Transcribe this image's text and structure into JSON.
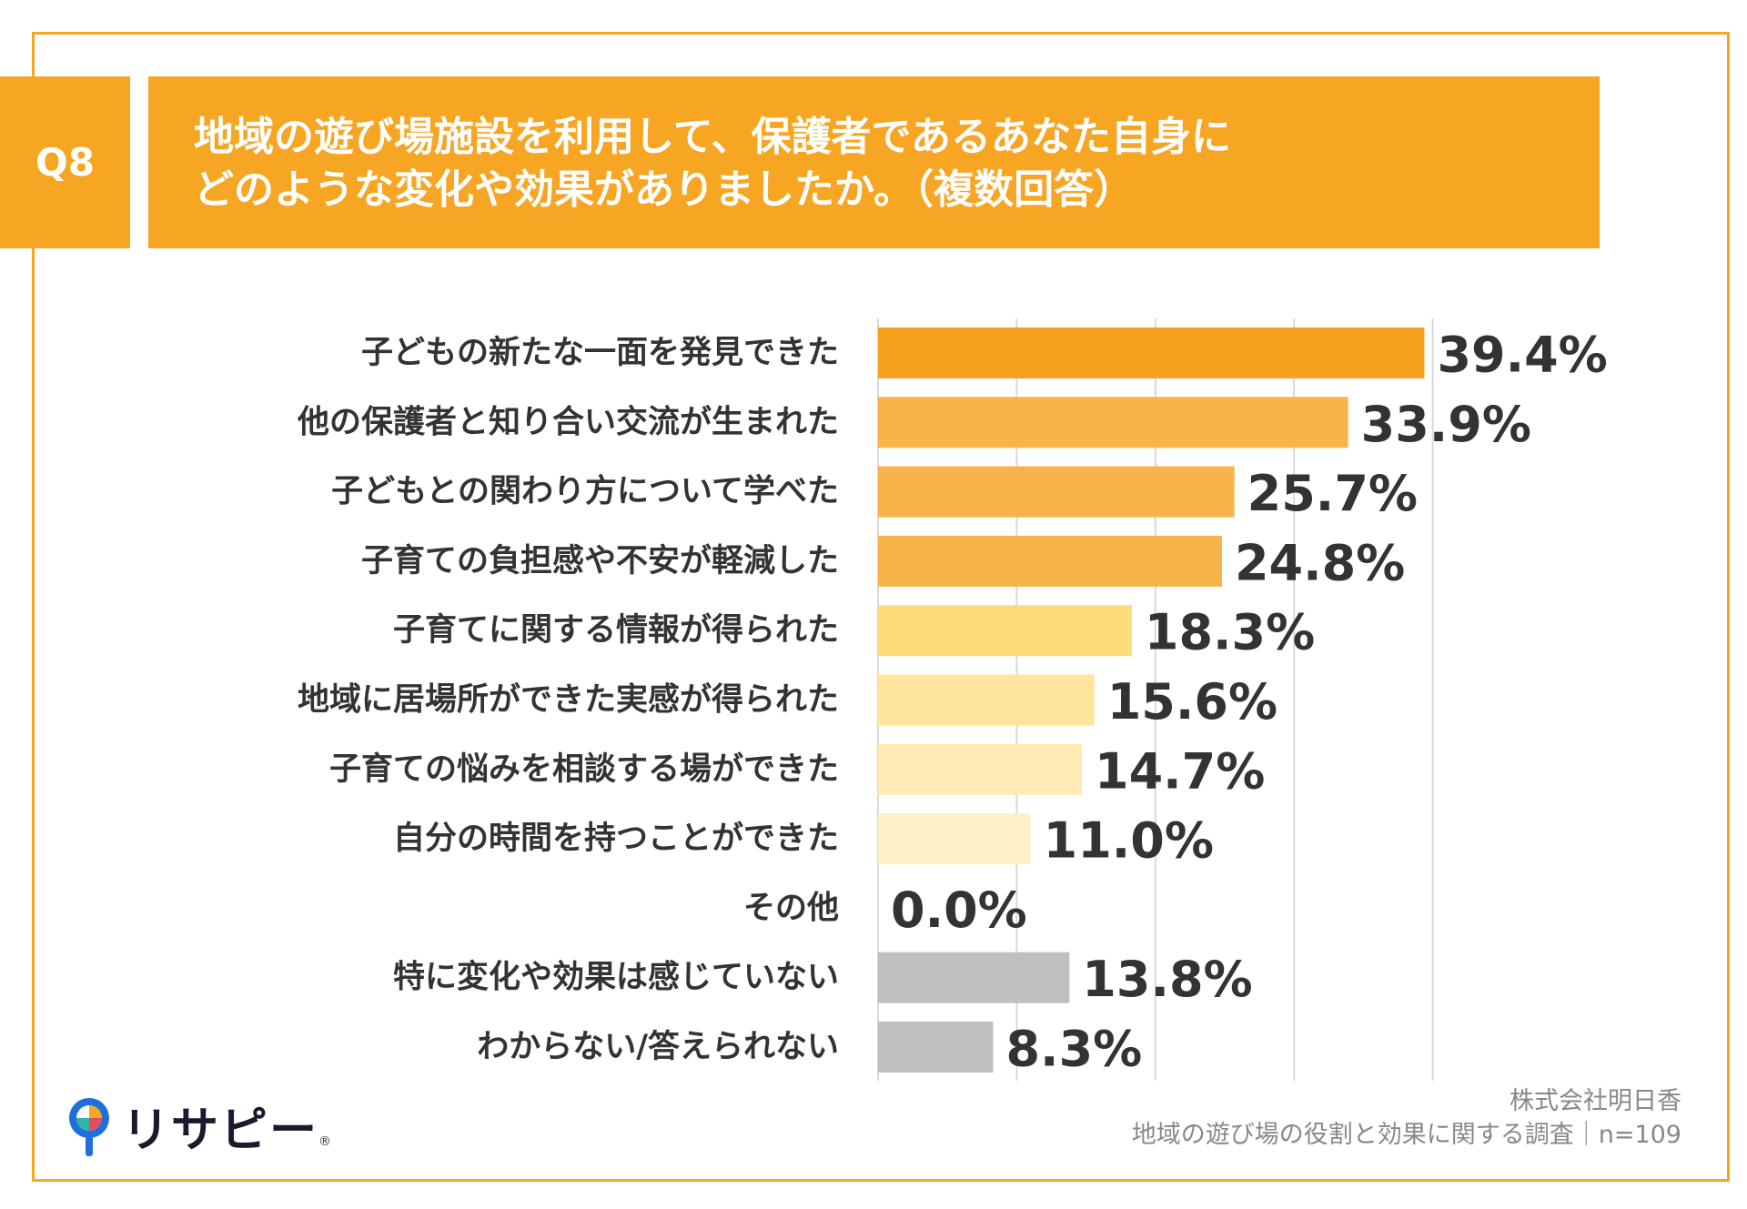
{
  "header": {
    "badge": "Q8",
    "title_line1": "地域の遊び場施設を利用して、保護者であるあなた自身に",
    "title_line2": "どのような変化や効果がありましたか。（複数回答）"
  },
  "chart_data": {
    "type": "bar",
    "orientation": "horizontal",
    "categories": [
      "子どもの新たな一面を発見できた",
      "他の保護者と知り合い交流が生まれた",
      "子どもとの関わり方について学べた",
      "子育ての負担感や不安が軽減した",
      "子育てに関する情報が得られた",
      "地域に居場所ができた実感が得られた",
      "子育ての悩みを相談する場ができた",
      "自分の時間を持つことができた",
      "その他",
      "特に変化や効果は感じていない",
      "わからない/答えられない"
    ],
    "values": [
      39.4,
      33.9,
      25.7,
      24.8,
      18.3,
      15.6,
      14.7,
      11.0,
      0.0,
      13.8,
      8.3
    ],
    "value_labels": [
      "39.4%",
      "33.9%",
      "25.7%",
      "24.8%",
      "18.3%",
      "15.6%",
      "14.7%",
      "11.0%",
      "0.0%",
      "13.8%",
      "8.3%"
    ],
    "bar_colors": [
      "#f6a11e",
      "#f8b44a",
      "#f8b44a",
      "#f8b44a",
      "#fddc7c",
      "#fde59b",
      "#fdebb3",
      "#fdf1c8",
      "#fdf1c8",
      "#bfbfbf",
      "#bfbfbf"
    ],
    "xlim": [
      0,
      50
    ],
    "grid": true,
    "unit": "%"
  },
  "brand": {
    "logo_text": "リサピー",
    "logo_mark": "®"
  },
  "source": {
    "line1": "株式会社明日香",
    "line2": "地域の遊び場の役割と効果に関する調査｜n=109"
  }
}
